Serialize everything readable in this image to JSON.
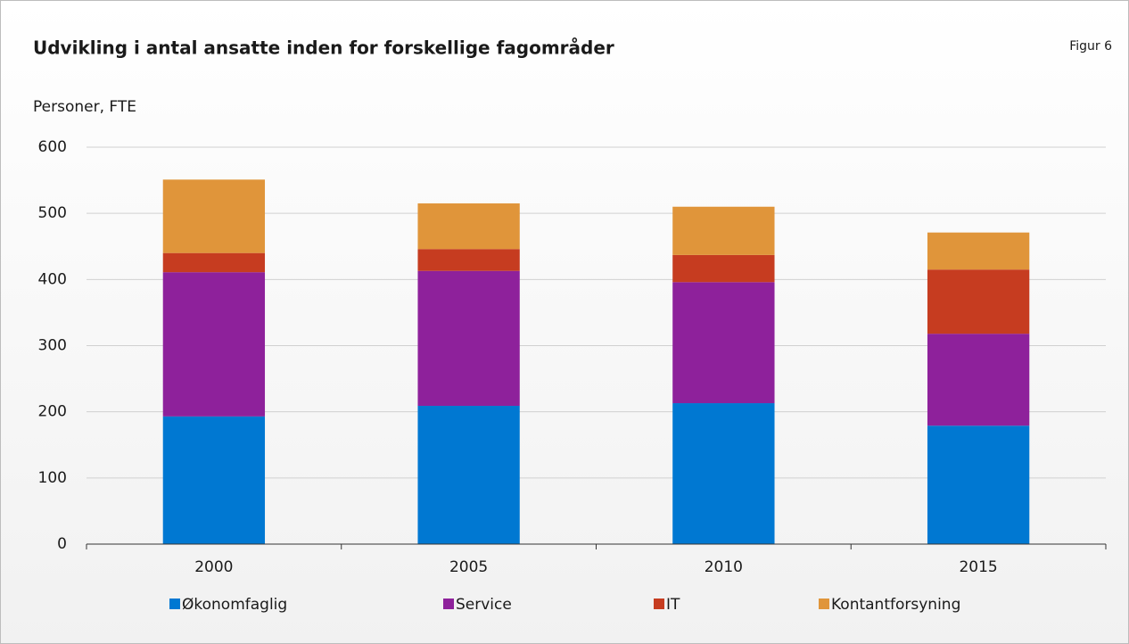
{
  "chart_data": {
    "type": "bar",
    "stacked": true,
    "title": "Udvikling i antal ansatte inden for forskellige fagområder",
    "figure_label": "Figur 6",
    "y_label": "Personer, FTE",
    "categories": [
      "2000",
      "2005",
      "2010",
      "2015"
    ],
    "series": [
      {
        "name": "Økonomfaglig",
        "color": "#0078d2",
        "values": [
          193,
          209,
          213,
          179
        ]
      },
      {
        "name": "Service",
        "color": "#8e219b",
        "values": [
          218,
          204,
          183,
          139
        ]
      },
      {
        "name": "IT",
        "color": "#c63c20",
        "values": [
          29,
          33,
          41,
          97
        ]
      },
      {
        "name": "Kontantforsyning",
        "color": "#e0953a",
        "values": [
          111,
          69,
          73,
          56
        ]
      }
    ],
    "ylim": [
      0,
      600
    ],
    "yticks": [
      0,
      100,
      200,
      300,
      400,
      500,
      600
    ],
    "grid": true,
    "legend": "bottom"
  }
}
